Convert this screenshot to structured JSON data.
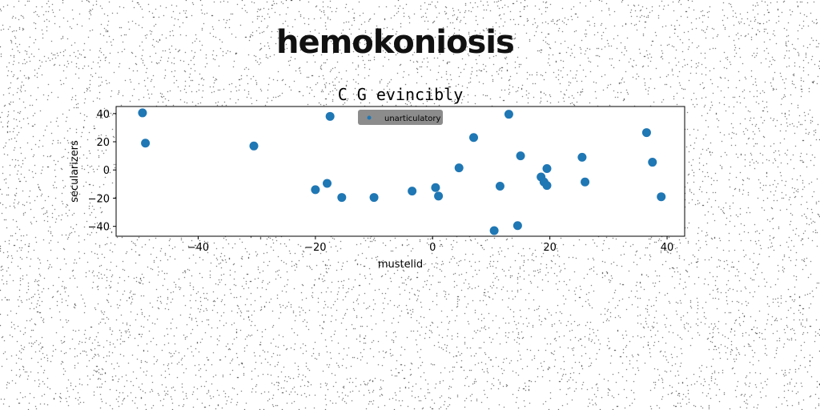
{
  "page_title": "hemokoniosis",
  "chart_data": {
    "type": "scatter",
    "title": "C G evincibly",
    "xlabel": "mustelid",
    "ylabel": "secularizers",
    "xlim": [
      -54,
      43
    ],
    "ylim": [
      -47,
      45
    ],
    "xticks": [
      -40,
      -20,
      0,
      20,
      40
    ],
    "yticks": [
      -40,
      -20,
      0,
      20,
      40
    ],
    "grid": false,
    "legend_position": "top-center",
    "series": [
      {
        "name": "unarticulatory",
        "color": "#1f77b4",
        "points": [
          [
            -49.5,
            40.5
          ],
          [
            -49,
            19
          ],
          [
            -30.5,
            17
          ],
          [
            -17.5,
            38
          ],
          [
            -20,
            -14
          ],
          [
            -18,
            -9.5
          ],
          [
            -15.5,
            -19.5
          ],
          [
            -10,
            -19.5
          ],
          [
            -3.5,
            -15
          ],
          [
            0.5,
            -12.5
          ],
          [
            1,
            -18.5
          ],
          [
            4.5,
            1.5
          ],
          [
            7,
            23
          ],
          [
            10.5,
            -43
          ],
          [
            11.5,
            -11.5
          ],
          [
            13,
            39.5
          ],
          [
            14.5,
            -39.5
          ],
          [
            15,
            10
          ],
          [
            18.5,
            -5
          ],
          [
            19.5,
            1
          ],
          [
            19,
            -8.5
          ],
          [
            19.5,
            -11
          ],
          [
            25.5,
            9
          ],
          [
            26,
            -8.5
          ],
          [
            36.5,
            26.5
          ],
          [
            37.5,
            5.5
          ],
          [
            39,
            -19
          ]
        ]
      }
    ]
  }
}
